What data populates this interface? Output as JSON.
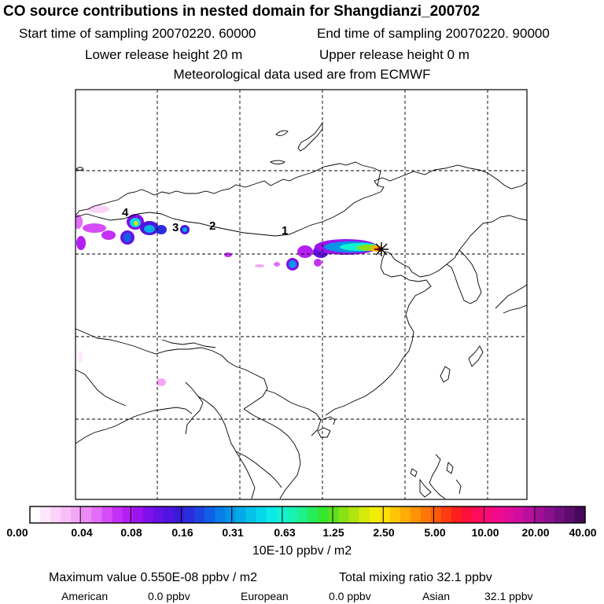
{
  "header": {
    "title": "CO  source contributions in nested domain for Shangdianzi_200702",
    "start": "Start time of sampling 20070220. 60000",
    "end": "End time of sampling 20070220. 90000",
    "lower": "Lower release height   20 m",
    "upper": "Upper release height    0 m",
    "met": "Meteorological data used are from ECMWF"
  },
  "map": {
    "sector_labels": [
      "1",
      "2",
      "3",
      "4"
    ],
    "receptor_symbol": "star-icon"
  },
  "legend": {
    "ticks": [
      "0.00",
      "0.04",
      "0.08",
      "0.16",
      "0.31",
      "0.63",
      "1.25",
      "2.50",
      "5.00",
      "10.00",
      "20.00",
      "40.00"
    ],
    "units": "10E-10 ppbv / m2",
    "colors": [
      "#ffffff",
      "#fde8fb",
      "#fbd3f8",
      "#f8bff6",
      "#f3a6f5",
      "#ec8af7",
      "#e36cf8",
      "#d54cf8",
      "#c530f6",
      "#b31ff2",
      "#9b14ee",
      "#8010ea",
      "#6611e6",
      "#4f14e0",
      "#3a1ad8",
      "#2a2ddd",
      "#1b45e3",
      "#1060e6",
      "#087ce8",
      "#0494e8",
      "#03abe6",
      "#04c2e8",
      "#06d8ea",
      "#0ce9e9",
      "#12f2d4",
      "#18f2b2",
      "#1ef08a",
      "#26ec5c",
      "#34e62e",
      "#5be21c",
      "#88e215",
      "#b1e410",
      "#d6ea0c",
      "#f2ed08",
      "#ffdf06",
      "#ffc605",
      "#ffad05",
      "#ff9306",
      "#ff7807",
      "#ff5a0a",
      "#ff3b10",
      "#ff1e1e",
      "#ff0f3c",
      "#ff0b5c",
      "#fa0a78",
      "#f00b8c",
      "#e30c98",
      "#d00d9e",
      "#ba0e9c",
      "#a20f96",
      "#8a0f8c",
      "#720e7e",
      "#5c0c6c",
      "#460959"
    ]
  },
  "stats": {
    "maximum": "Maximum value  0.550E-08 ppbv / m2",
    "total": "Total mixing ratio      32.1 ppbv",
    "american_label": "American",
    "american_value": "0.0 ppbv",
    "european_label": "European",
    "european_value": "0.0 ppbv",
    "asian_label": "Asian",
    "asian_value": "32.1 ppbv"
  }
}
